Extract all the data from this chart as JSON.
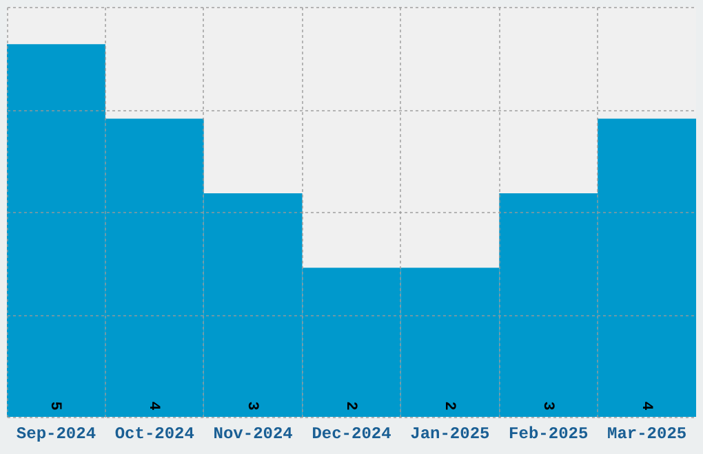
{
  "chart_data": {
    "type": "bar",
    "categories": [
      "Sep-2024",
      "Oct-2024",
      "Nov-2024",
      "Dec-2024",
      "Jan-2025",
      "Feb-2025",
      "Mar-2025"
    ],
    "values": [
      5,
      4,
      3,
      2,
      2,
      3,
      4
    ],
    "color": "#0099cc",
    "ylim": [
      0,
      5.5
    ],
    "yticks": [
      {
        "value": 0,
        "label": null
      },
      {
        "value": 1.375,
        "label": null
      },
      {
        "value": 2.75,
        "label": null
      },
      {
        "value": 4.125,
        "label": null
      },
      {
        "value": 5.5,
        "label": null
      }
    ],
    "grid": true,
    "tick_labels": "x",
    "data_labels": true
  }
}
